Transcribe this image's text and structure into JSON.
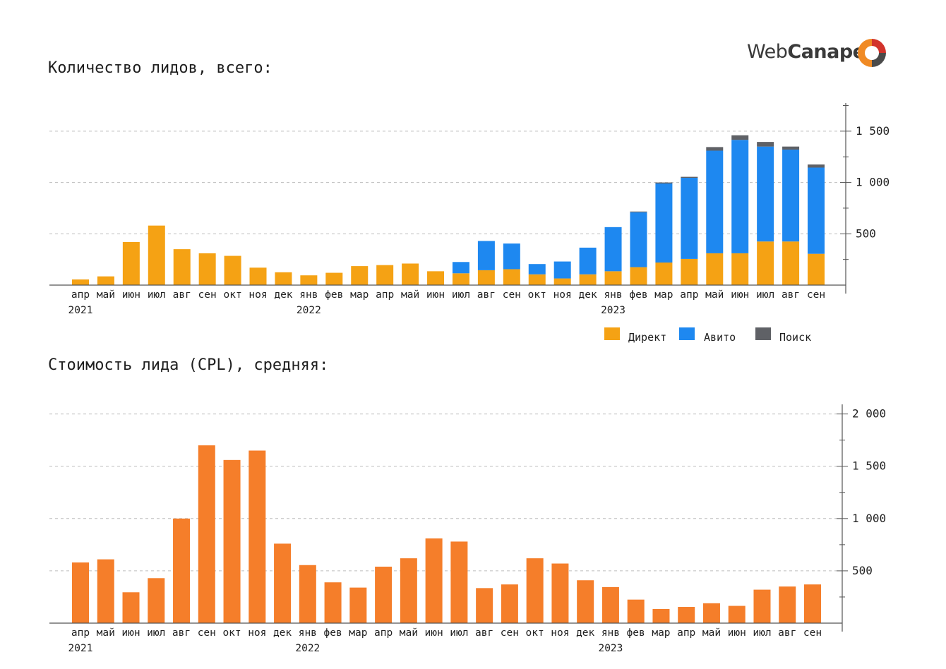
{
  "brand": {
    "logo_prefix": "Web",
    "logo_bold": "Canape",
    "colors": {
      "orange": "#F08A24",
      "red": "#D2332B",
      "grey": "#4A4A4A"
    }
  },
  "titles": {
    "leads": "Количество лидов, всего:",
    "cpl": "Стоимость лида (CPL), средняя:"
  },
  "chart_data": [
    {
      "type": "bar",
      "stacked": true,
      "title": "Количество лидов, всего:",
      "categories": [
        "апр",
        "май",
        "июн",
        "июл",
        "авг",
        "сен",
        "окт",
        "ноя",
        "дек",
        "янв",
        "фев",
        "мар",
        "апр",
        "май",
        "июн",
        "июл",
        "авг",
        "сен",
        "окт",
        "ноя",
        "дек",
        "янв",
        "фев",
        "мар",
        "апр",
        "май",
        "июн",
        "июл",
        "авг",
        "сен"
      ],
      "year_labels": [
        {
          "index": 0,
          "label": "2021"
        },
        {
          "index": 9,
          "label": "2022"
        },
        {
          "index": 21,
          "label": "2023"
        }
      ],
      "series": [
        {
          "name": "Директ",
          "color": "#F5A214",
          "values": [
            55,
            85,
            420,
            580,
            350,
            310,
            285,
            170,
            125,
            95,
            120,
            185,
            195,
            210,
            135,
            115,
            145,
            155,
            105,
            65,
            105,
            135,
            175,
            220,
            255,
            310,
            310,
            425,
            425,
            305
          ]
        },
        {
          "name": "Авито",
          "color": "#1E88F0",
          "values": [
            0,
            0,
            0,
            0,
            0,
            0,
            0,
            0,
            0,
            0,
            0,
            0,
            0,
            0,
            0,
            110,
            285,
            250,
            100,
            165,
            260,
            430,
            535,
            770,
            790,
            1000,
            1105,
            925,
            895,
            840
          ]
        },
        {
          "name": "Поиск",
          "color": "#5F6166",
          "values": [
            0,
            0,
            0,
            0,
            0,
            0,
            0,
            0,
            0,
            0,
            0,
            0,
            0,
            0,
            0,
            0,
            0,
            0,
            0,
            0,
            0,
            0,
            7,
            10,
            10,
            35,
            45,
            45,
            30,
            30
          ]
        }
      ],
      "ylim": [
        0,
        1750
      ],
      "yticks": [
        500,
        1000,
        1500
      ],
      "ytick_labels": [
        "500",
        "1 000",
        "1 500"
      ],
      "grid": "horizontal dashed",
      "legend": "bottom-right",
      "y_axis_side": "right"
    },
    {
      "type": "bar",
      "title": "Стоимость лида (CPL), средняя:",
      "categories": [
        "апр",
        "май",
        "июн",
        "июл",
        "авг",
        "сен",
        "окт",
        "ноя",
        "дек",
        "янв",
        "фев",
        "мар",
        "апр",
        "май",
        "июн",
        "июл",
        "авг",
        "сен",
        "окт",
        "ноя",
        "дек",
        "янв",
        "фев",
        "мар",
        "апр",
        "май",
        "июн",
        "июл",
        "авг",
        "сен"
      ],
      "year_labels": [
        {
          "index": 0,
          "label": "2021"
        },
        {
          "index": 9,
          "label": "2022"
        },
        {
          "index": 21,
          "label": "2023"
        }
      ],
      "series": [
        {
          "name": "CPL",
          "color": "#F57E2A",
          "values": [
            580,
            610,
            295,
            430,
            1000,
            1700,
            1560,
            1650,
            760,
            555,
            390,
            340,
            540,
            620,
            810,
            780,
            335,
            370,
            620,
            570,
            410,
            345,
            225,
            135,
            155,
            190,
            165,
            320,
            350,
            370
          ]
        }
      ],
      "ylim": [
        0,
        2100
      ],
      "yticks": [
        500,
        1000,
        1500,
        2000
      ],
      "ytick_labels": [
        "500",
        "1 000",
        "1 500",
        "2 000"
      ],
      "grid": "horizontal dashed",
      "y_axis_side": "right"
    }
  ]
}
